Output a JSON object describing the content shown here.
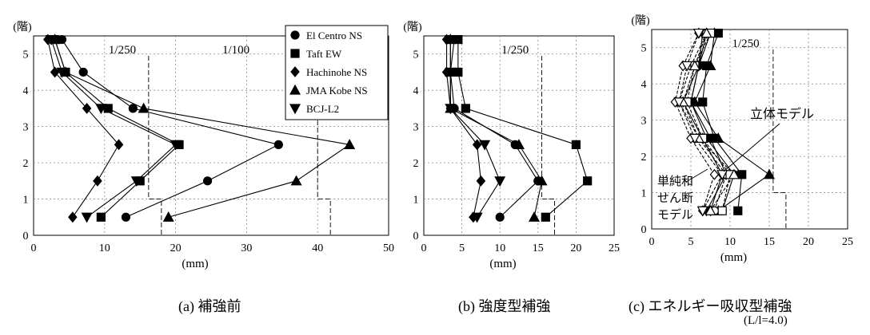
{
  "chart_data": [
    {
      "type": "line",
      "panel_caption": "(a)  補強前",
      "ylabel": "(階)",
      "xlabel": "(mm)",
      "xlim": [
        0,
        50
      ],
      "ylim": [
        0,
        5.5
      ],
      "xticks": [
        0,
        10,
        20,
        30,
        40,
        50
      ],
      "yticks": [
        0,
        1,
        2,
        3,
        4,
        5
      ],
      "grid": true,
      "limit_labels": [
        "1/250",
        "1/100"
      ],
      "legend_position": "top-right",
      "series": [
        {
          "name": "El Centro NS",
          "marker": "circle",
          "points": [
            [
              13.0,
              0.5
            ],
            [
              24.5,
              1.5
            ],
            [
              34.5,
              2.5
            ],
            [
              14.0,
              3.5
            ],
            [
              7.0,
              4.5
            ],
            [
              4.0,
              5.4
            ]
          ]
        },
        {
          "name": "Taft EW",
          "marker": "square",
          "points": [
            [
              9.5,
              0.5
            ],
            [
              15.0,
              1.5
            ],
            [
              20.5,
              2.5
            ],
            [
              10.5,
              3.5
            ],
            [
              4.5,
              4.5
            ],
            [
              3.0,
              5.4
            ]
          ]
        },
        {
          "name": "Hachinohe NS",
          "marker": "diamond",
          "points": [
            [
              5.5,
              0.5
            ],
            [
              9.0,
              1.5
            ],
            [
              12.0,
              2.5
            ],
            [
              7.5,
              3.5
            ],
            [
              3.0,
              4.5
            ],
            [
              2.0,
              5.4
            ]
          ]
        },
        {
          "name": "JMA Kobe NS",
          "marker": "triangle-up",
          "points": [
            [
              19.0,
              0.5
            ],
            [
              37.0,
              1.5
            ],
            [
              44.5,
              2.5
            ],
            [
              15.5,
              3.5
            ],
            [
              4.5,
              4.5
            ],
            [
              3.0,
              5.4
            ]
          ]
        },
        {
          "name": "BCJ-L2",
          "marker": "triangle-down",
          "points": [
            [
              7.5,
              0.5
            ],
            [
              14.5,
              1.5
            ],
            [
              20.0,
              2.5
            ],
            [
              9.5,
              3.5
            ],
            [
              4.0,
              4.5
            ],
            [
              2.5,
              5.4
            ]
          ]
        }
      ]
    },
    {
      "type": "line",
      "panel_caption": "(b)  強度型補強",
      "ylabel": "(階)",
      "xlabel": "(mm)",
      "xlim": [
        0,
        25
      ],
      "ylim": [
        0,
        5.5
      ],
      "xticks": [
        0,
        5,
        10,
        15,
        20,
        25
      ],
      "yticks": [
        0,
        1,
        2,
        3,
        4,
        5
      ],
      "grid": true,
      "limit_labels": [
        "1/250"
      ],
      "series": [
        {
          "name": "El Centro NS",
          "marker": "circle",
          "points": [
            [
              10.0,
              0.5
            ],
            [
              15.0,
              1.5
            ],
            [
              12.0,
              2.5
            ],
            [
              4.0,
              3.5
            ],
            [
              3.5,
              4.5
            ],
            [
              4.0,
              5.4
            ]
          ]
        },
        {
          "name": "Taft EW",
          "marker": "square",
          "points": [
            [
              16.0,
              0.5
            ],
            [
              21.5,
              1.5
            ],
            [
              20.0,
              2.5
            ],
            [
              5.5,
              3.5
            ],
            [
              4.5,
              4.5
            ],
            [
              4.5,
              5.4
            ]
          ]
        },
        {
          "name": "Hachinohe NS",
          "marker": "diamond",
          "points": [
            [
              6.5,
              0.5
            ],
            [
              7.5,
              1.5
            ],
            [
              7.0,
              2.5
            ],
            [
              3.5,
              3.5
            ],
            [
              3.0,
              4.5
            ],
            [
              3.0,
              5.4
            ]
          ]
        },
        {
          "name": "JMA Kobe NS",
          "marker": "triangle-up",
          "points": [
            [
              14.5,
              0.5
            ],
            [
              15.5,
              1.5
            ],
            [
              12.5,
              2.5
            ],
            [
              3.5,
              3.5
            ],
            [
              3.5,
              4.5
            ],
            [
              3.5,
              5.4
            ]
          ]
        },
        {
          "name": "BCJ-L2",
          "marker": "triangle-down",
          "points": [
            [
              7.0,
              0.5
            ],
            [
              10.0,
              1.5
            ],
            [
              8.0,
              2.5
            ],
            [
              3.5,
              3.5
            ],
            [
              3.5,
              4.5
            ],
            [
              3.5,
              5.4
            ]
          ]
        }
      ]
    },
    {
      "type": "line",
      "panel_caption": "(c)  エネルギー吸収型補強",
      "panel_caption_sub": "(L/l=4.0)",
      "ylabel": "(階)",
      "xlabel": "(mm)",
      "xlim": [
        0,
        25
      ],
      "ylim": [
        0,
        5.5
      ],
      "xticks": [
        0,
        5,
        10,
        15,
        20,
        25
      ],
      "yticks": [
        0,
        1,
        2,
        3,
        4,
        5
      ],
      "grid": true,
      "limit_labels": [
        "1/250"
      ],
      "annotations": [
        "立体モデル",
        "単純和",
        "せん断",
        "モデル"
      ],
      "series": [
        {
          "name": "El Centro NS",
          "model": "立体モデル",
          "marker": "circle",
          "points": [
            [
              9.0,
              0.5
            ],
            [
              10.5,
              1.5
            ],
            [
              7.0,
              2.5
            ],
            [
              5.0,
              3.5
            ],
            [
              6.0,
              4.5
            ],
            [
              7.5,
              5.4
            ]
          ]
        },
        {
          "name": "Taft EW",
          "model": "立体モデル",
          "marker": "square",
          "points": [
            [
              11.0,
              0.5
            ],
            [
              11.5,
              1.5
            ],
            [
              8.0,
              2.5
            ],
            [
              6.5,
              3.5
            ],
            [
              7.0,
              4.5
            ],
            [
              8.5,
              5.4
            ]
          ]
        },
        {
          "name": "Hachinohe NS",
          "model": "立体モデル",
          "marker": "diamond",
          "points": [
            [
              7.5,
              0.5
            ],
            [
              9.0,
              1.5
            ],
            [
              6.5,
              2.5
            ],
            [
              4.0,
              3.5
            ],
            [
              6.0,
              4.5
            ],
            [
              7.0,
              5.4
            ]
          ]
        },
        {
          "name": "JMA Kobe NS",
          "model": "立体モデル",
          "marker": "triangle-up",
          "points": [
            [
              8.5,
              0.5
            ],
            [
              15.0,
              1.5
            ],
            [
              8.5,
              2.5
            ],
            [
              5.5,
              3.5
            ],
            [
              7.5,
              4.5
            ],
            [
              8.0,
              5.4
            ]
          ]
        },
        {
          "name": "BCJ-L2",
          "model": "立体モデル",
          "marker": "triangle-down",
          "points": [
            [
              7.0,
              0.5
            ],
            [
              9.5,
              1.5
            ],
            [
              7.5,
              2.5
            ],
            [
              5.0,
              3.5
            ],
            [
              6.0,
              4.5
            ],
            [
              6.5,
              5.4
            ]
          ]
        },
        {
          "name": "El Centro NS",
          "model": "単純和せん断モデル",
          "marker": "circle-open",
          "points": [
            [
              8.0,
              0.5
            ],
            [
              9.5,
              1.5
            ],
            [
              6.0,
              2.5
            ],
            [
              3.5,
              3.5
            ],
            [
              5.0,
              4.5
            ],
            [
              7.0,
              5.4
            ]
          ]
        },
        {
          "name": "Taft EW",
          "model": "単純和せん断モデル",
          "marker": "square-open",
          "points": [
            [
              9.0,
              0.5
            ],
            [
              10.0,
              1.5
            ],
            [
              6.5,
              2.5
            ],
            [
              4.5,
              3.5
            ],
            [
              5.5,
              4.5
            ],
            [
              7.5,
              5.4
            ]
          ]
        },
        {
          "name": "Hachinohe NS",
          "model": "単純和せん断モデル",
          "marker": "diamond-open",
          "points": [
            [
              6.5,
              0.5
            ],
            [
              8.0,
              1.5
            ],
            [
              5.0,
              2.5
            ],
            [
              3.0,
              3.5
            ],
            [
              4.0,
              4.5
            ],
            [
              6.0,
              5.4
            ]
          ]
        },
        {
          "name": "JMA Kobe NS",
          "model": "単純和せん断モデル",
          "marker": "triangle-up-open",
          "points": [
            [
              7.5,
              0.5
            ],
            [
              10.5,
              1.5
            ],
            [
              6.0,
              2.5
            ],
            [
              4.0,
              3.5
            ],
            [
              5.5,
              4.5
            ],
            [
              7.0,
              5.4
            ]
          ]
        },
        {
          "name": "BCJ-L2",
          "model": "単純和せん断モデル",
          "marker": "triangle-down-open",
          "points": [
            [
              6.5,
              0.5
            ],
            [
              9.0,
              1.5
            ],
            [
              5.5,
              2.5
            ],
            [
              3.5,
              3.5
            ],
            [
              4.5,
              4.5
            ],
            [
              6.0,
              5.4
            ]
          ]
        }
      ]
    }
  ]
}
